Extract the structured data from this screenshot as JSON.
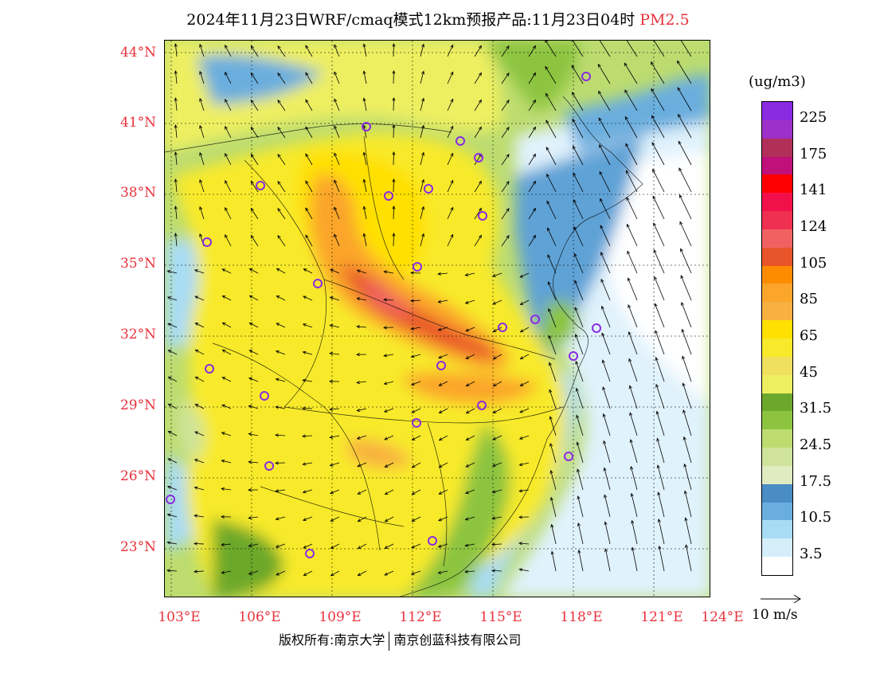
{
  "title": {
    "main": "2024年11月23日WRF/cmaq模式12km预报产品:11月23日04时",
    "species": "PM2.5"
  },
  "colors": {
    "accent_red": "#e8323c"
  },
  "latitude_labels": [
    "44°N",
    "41°N",
    "38°N",
    "35°N",
    "32°N",
    "29°N",
    "26°N",
    "23°N"
  ],
  "longitude_labels": [
    "103°E",
    "106°E",
    "109°E",
    "112°E",
    "115°E",
    "118°E",
    "121°E",
    "124°E"
  ],
  "colorbar": {
    "unit": "(ug/m3)",
    "colors": [
      "#8a2be2",
      "#9d30c9",
      "#b0305a",
      "#c0117a",
      "#ff0000",
      "#f2104a",
      "#f03050",
      "#f06262",
      "#e8552a",
      "#ff8c00",
      "#fba52a",
      "#f8b040",
      "#ffe000",
      "#f8ea2a",
      "#f0e060",
      "#eeef60",
      "#6ca82c",
      "#8cc440",
      "#bcdc70",
      "#cfe49a",
      "#e0ebc0",
      "#4a8cc4",
      "#6aaede",
      "#a8dcf4",
      "#d6eefa",
      "#ffffff"
    ],
    "labels": [
      "225",
      "175",
      "141",
      "124",
      "105",
      "85",
      "65",
      "45",
      "31.5",
      "24.5",
      "17.5",
      "10.5",
      "3.5"
    ]
  },
  "wind_vector": {
    "label": "10 m/s"
  },
  "copyright": {
    "left": "版权所有:南京大学",
    "right": "南京创蓝科技有限公司"
  }
}
